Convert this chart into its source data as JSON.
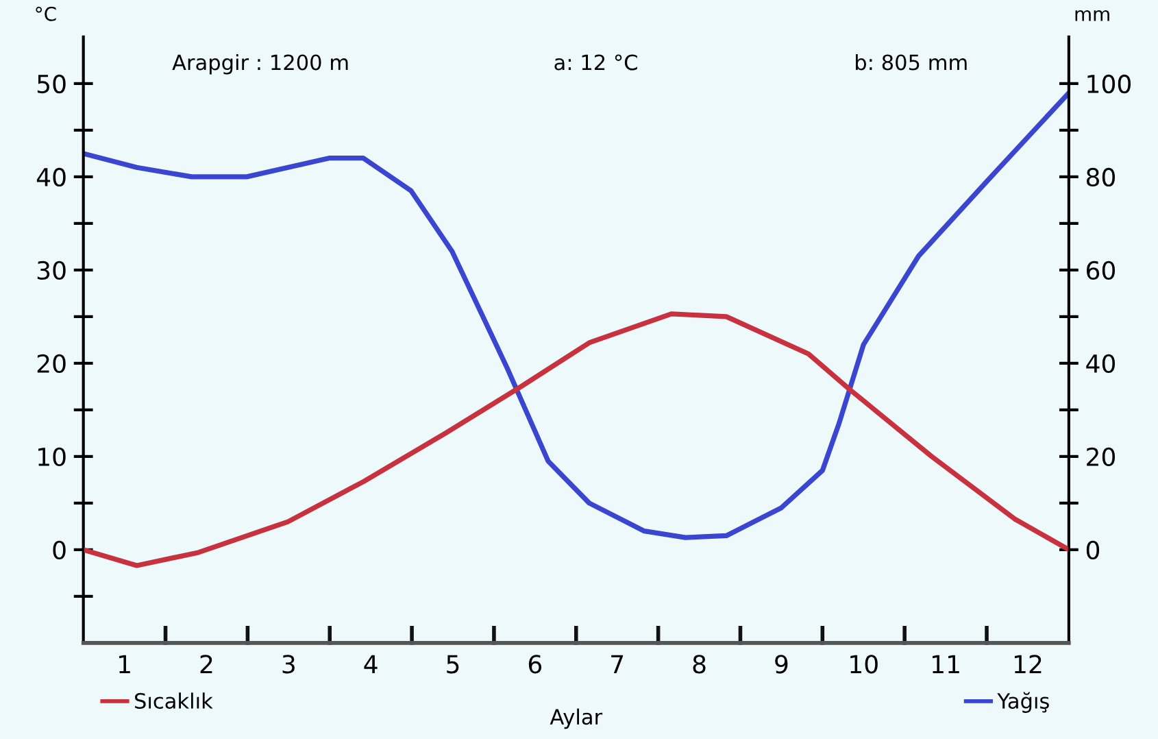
{
  "chart_data": {
    "type": "line",
    "xlabel": "Aylar",
    "ylabel": "°C",
    "y2label": "mm",
    "annotations": [
      "Arapgir : 1200 m",
      "a: 12 °C",
      "b: 805 mm"
    ],
    "xlim": [
      0.5,
      12.5
    ],
    "xticks": [
      {
        "value": 1,
        "label": "1"
      },
      {
        "value": 1.5,
        "label": null
      },
      {
        "value": 2,
        "label": "2"
      },
      {
        "value": 2.5,
        "label": null
      },
      {
        "value": 3,
        "label": "3"
      },
      {
        "value": 3.5,
        "label": null
      },
      {
        "value": 4,
        "label": "4"
      },
      {
        "value": 4.5,
        "label": null
      },
      {
        "value": 5,
        "label": "5"
      },
      {
        "value": 5.5,
        "label": null
      },
      {
        "value": 6,
        "label": "6"
      },
      {
        "value": 6.5,
        "label": null
      },
      {
        "value": 7,
        "label": "7"
      },
      {
        "value": 7.5,
        "label": null
      },
      {
        "value": 8,
        "label": "8"
      },
      {
        "value": 8.5,
        "label": null
      },
      {
        "value": 9,
        "label": "9"
      },
      {
        "value": 9.5,
        "label": null
      },
      {
        "value": 10,
        "label": "10"
      },
      {
        "value": 10.5,
        "label": null
      },
      {
        "value": 11,
        "label": "11"
      },
      {
        "value": 11.5,
        "label": null
      },
      {
        "value": 12,
        "label": "12"
      }
    ],
    "ylim": [
      -10,
      55
    ],
    "yticks": [
      {
        "value": -5,
        "label": null
      },
      0,
      {
        "value": 5,
        "label": null
      },
      10,
      {
        "value": 15,
        "label": null
      },
      20,
      {
        "value": 25,
        "label": null
      },
      30,
      {
        "value": 35,
        "label": null
      },
      40,
      {
        "value": 45,
        "label": null
      },
      50
    ],
    "y2lim": [
      -20,
      110
    ],
    "y2ticks": [
      0,
      {
        "value": 10,
        "label": null
      },
      20,
      {
        "value": 30,
        "label": null
      },
      40,
      {
        "value": 50,
        "label": null
      },
      60,
      {
        "value": 70,
        "label": null
      },
      80,
      {
        "value": 90,
        "label": null
      },
      100
    ],
    "grid": false,
    "legend": "bottom",
    "marker": "none",
    "line_style": "solid",
    "series": [
      {
        "name": "Sıcaklık",
        "color": "#c8323f",
        "x": [
          0.5,
          1.15,
          1.9,
          2.99,
          3.91,
          4.91,
          5.83,
          6.66,
          7.66,
          8.33,
          9.33,
          9.83,
          10.83,
          11.84,
          12.5
        ],
        "values": [
          0,
          -1.7,
          -0.3,
          3,
          7.3,
          12.5,
          17.5,
          22.2,
          25.3,
          25,
          21,
          17.2,
          10,
          3.3,
          0
        ]
      },
      {
        "name": "Yağış",
        "color": "#3a45d0",
        "axis": "y2",
        "x": [
          0.5,
          1.15,
          1.82,
          2.49,
          3.49,
          3.91,
          4.49,
          4.99,
          5.66,
          6.16,
          6.66,
          7.33,
          7.83,
          8.33,
          9.0,
          9.5,
          9.7,
          10.0,
          10.67,
          11.5,
          12.5
        ],
        "values": [
          85,
          82,
          80,
          80,
          84,
          84,
          77,
          64,
          39,
          19,
          10,
          4,
          2.6,
          3,
          9,
          17,
          27,
          44,
          63,
          79,
          98
        ]
      }
    ]
  }
}
